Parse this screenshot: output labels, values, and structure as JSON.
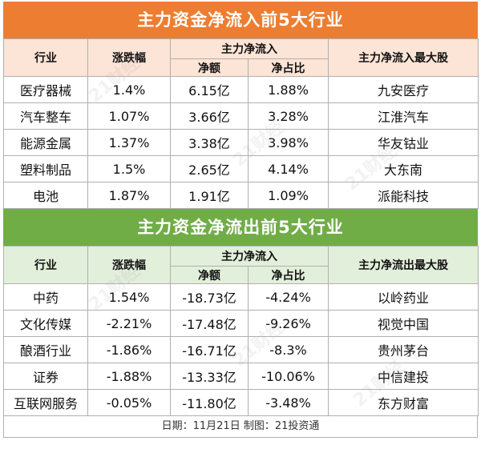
{
  "inflow": {
    "title": "主力资金净流入前5大行业",
    "headers": {
      "industry": "行业",
      "change": "涨跌幅",
      "flow_group": "主力净流入",
      "net": "净额",
      "ratio": "净占比",
      "top_stock": "主力净流入最大股"
    },
    "rows": [
      {
        "industry": "医疗器械",
        "change": "1.4%",
        "net": "6.15亿",
        "ratio": "1.88%",
        "stock": "九安医疗"
      },
      {
        "industry": "汽车整车",
        "change": "1.07%",
        "net": "3.66亿",
        "ratio": "3.28%",
        "stock": "江淮汽车"
      },
      {
        "industry": "能源金属",
        "change": "1.37%",
        "net": "3.38亿",
        "ratio": "3.98%",
        "stock": "华友钴业"
      },
      {
        "industry": "塑料制品",
        "change": "1.5%",
        "net": "2.65亿",
        "ratio": "4.14%",
        "stock": "大东南"
      },
      {
        "industry": "电池",
        "change": "1.87%",
        "net": "1.91亿",
        "ratio": "1.09%",
        "stock": "派能科技"
      }
    ]
  },
  "outflow": {
    "title": "主力资金净流出前5大行业",
    "headers": {
      "industry": "行业",
      "change": "涨跌幅",
      "flow_group": "主力净流入",
      "net": "净额",
      "ratio": "净占比",
      "top_stock": "主力净流出最大股"
    },
    "rows": [
      {
        "industry": "中药",
        "change": "1.54%",
        "net": "-18.73亿",
        "ratio": "-4.24%",
        "stock": "以岭药业"
      },
      {
        "industry": "文化传媒",
        "change": "-2.21%",
        "net": "-17.48亿",
        "ratio": "-9.26%",
        "stock": "视觉中国"
      },
      {
        "industry": "酿酒行业",
        "change": "-1.86%",
        "net": "-16.71亿",
        "ratio": "-8.3%",
        "stock": "贵州茅台"
      },
      {
        "industry": "证券",
        "change": "-1.88%",
        "net": "-13.33亿",
        "ratio": "-10.06%",
        "stock": "中信建投"
      },
      {
        "industry": "互联网服务",
        "change": "-0.05%",
        "net": "-11.80亿",
        "ratio": "-3.48%",
        "stock": "东方财富"
      }
    ]
  },
  "footer": "日期：11月21日 制图：21投资通",
  "watermark": "21财经",
  "colors": {
    "inflow_banner": "#ed7d31",
    "outflow_banner": "#70ad47"
  }
}
